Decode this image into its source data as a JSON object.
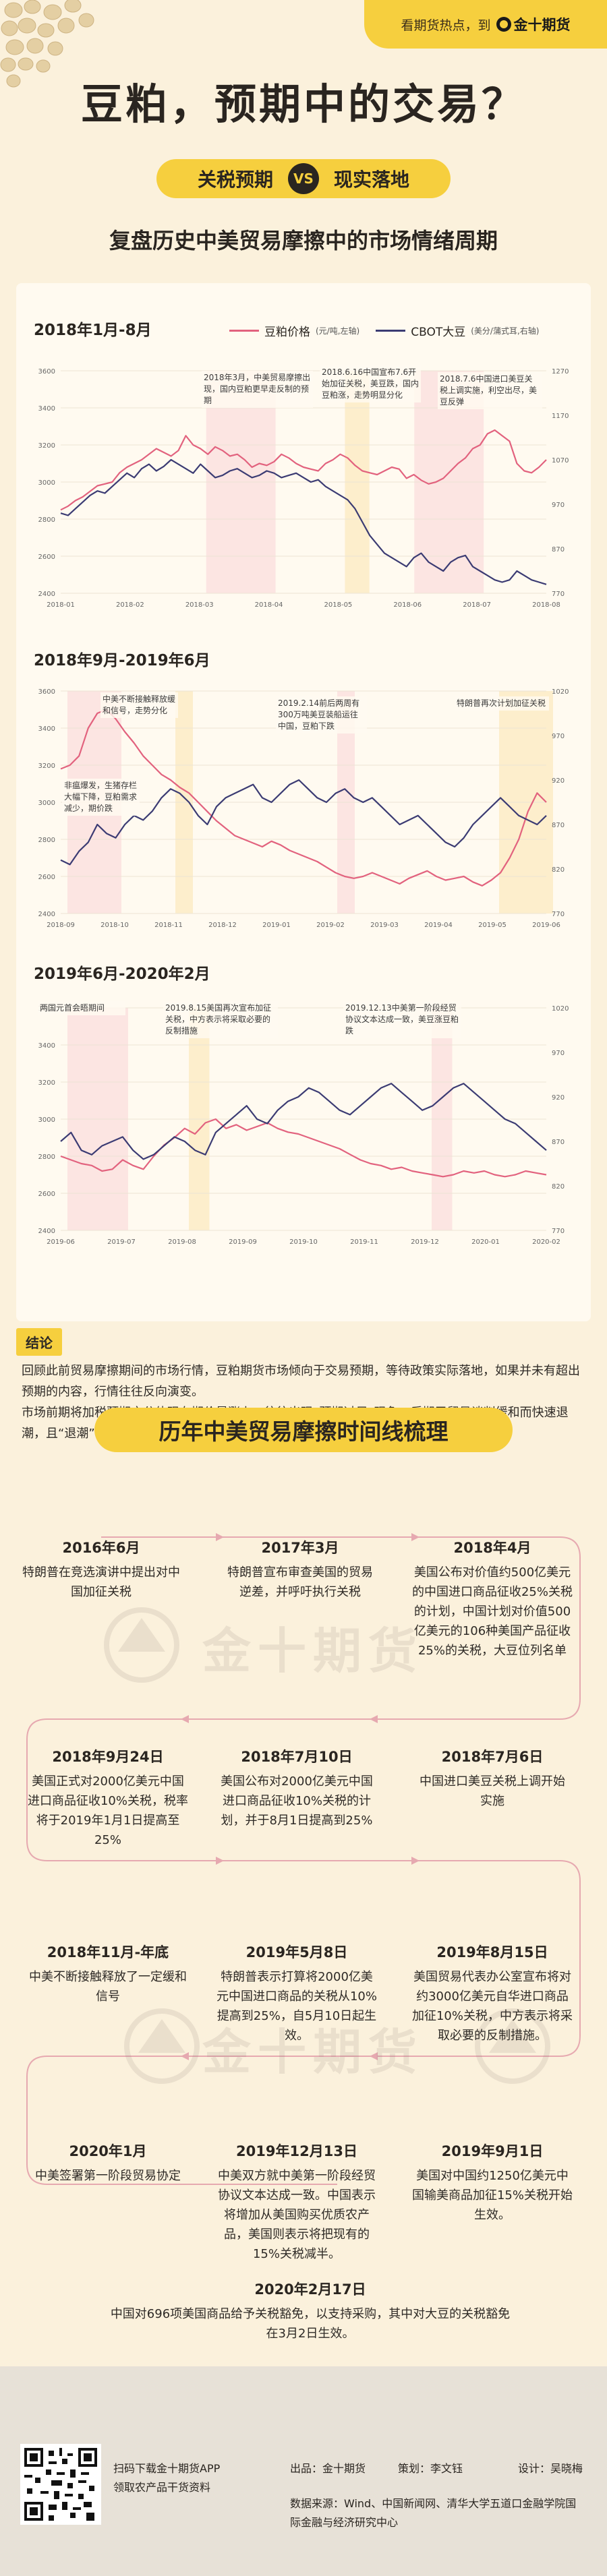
{
  "header": {
    "tagline": "看期货热点，到",
    "brand": "金十期货",
    "main_title": "豆粕，预期中的交易？",
    "pill_left": "关税预期",
    "pill_vs": "VS",
    "pill_right": "现实落地",
    "subtitle": "复盘历史中美贸易摩擦中的市场情绪周期"
  },
  "legend": {
    "series1_name": "豆粕价格",
    "series1_unit": "(元/吨,左轴)",
    "series2_name": "CBOT大豆",
    "series2_unit": "(美分/蒲式耳,右轴)"
  },
  "chart_data": [
    {
      "type": "line",
      "title": "2018年1月-8月",
      "x_ticks": [
        "2018-01",
        "2018-02",
        "2018-03",
        "2018-04",
        "2018-05",
        "2018-06",
        "2018-07",
        "2018-08"
      ],
      "y_left_ticks": [
        2400,
        2600,
        2800,
        3000,
        3200,
        3400,
        3600
      ],
      "y_right_ticks": [
        770,
        870,
        970,
        1070,
        1170,
        1270
      ],
      "ylim_left": [
        2400,
        3600
      ],
      "ylim_right": [
        770,
        1270
      ],
      "series": [
        {
          "name": "豆粕价格",
          "axis": "left",
          "color": "#e2627e",
          "values": [
            2850,
            2870,
            2900,
            2920,
            2950,
            2980,
            2990,
            3000,
            3050,
            3080,
            3100,
            3120,
            3150,
            3180,
            3160,
            3140,
            3170,
            3250,
            3200,
            3180,
            3150,
            3190,
            3170,
            3140,
            3150,
            3120,
            3080,
            3100,
            3090,
            3110,
            3150,
            3130,
            3100,
            3080,
            3070,
            3060,
            3100,
            3120,
            3150,
            3130,
            3090,
            3060,
            3050,
            3040,
            3060,
            3080,
            3070,
            3020,
            3040,
            3010,
            2990,
            3000,
            3020,
            3060,
            3100,
            3130,
            3180,
            3200,
            3260,
            3280,
            3250,
            3220,
            3100,
            3060,
            3050,
            3080,
            3120
          ]
        },
        {
          "name": "CBOT大豆",
          "axis": "right",
          "color": "#3b3b73",
          "values": [
            950,
            945,
            960,
            975,
            990,
            1000,
            995,
            1010,
            1025,
            1040,
            1030,
            1050,
            1060,
            1045,
            1055,
            1070,
            1060,
            1050,
            1040,
            1060,
            1045,
            1030,
            1035,
            1045,
            1050,
            1040,
            1030,
            1035,
            1045,
            1040,
            1030,
            1035,
            1040,
            1030,
            1020,
            1025,
            1010,
            1000,
            990,
            980,
            960,
            930,
            900,
            880,
            860,
            850,
            840,
            830,
            850,
            860,
            840,
            830,
            820,
            840,
            850,
            855,
            830,
            820,
            810,
            800,
            795,
            800,
            820,
            810,
            800,
            795,
            790
          ]
        }
      ],
      "shaded_x": [
        [
          "2018-03",
          "2018-04"
        ],
        [
          "2018-05",
          "2018-05"
        ],
        [
          "2018-06",
          "2018-07"
        ]
      ],
      "annotations": [
        "2018年3月，中美贸易摩擦出现，国内豆粕更早走反制的预期",
        "2018.6.16中国宣布7.6开始加征关税，美豆跌，国内豆粕涨，走势明显分化",
        "2018.7.6中国进口美豆关税上调实施，利空出尽，美豆反弹"
      ]
    },
    {
      "type": "line",
      "title": "2018年9月-2019年6月",
      "x_ticks": [
        "2018-09",
        "2018-10",
        "2018-11",
        "2018-12",
        "2019-01",
        "2019-02",
        "2019-03",
        "2019-04",
        "2019-05",
        "2019-06"
      ],
      "y_left_ticks": [
        2400,
        2600,
        2800,
        3000,
        3200,
        3400,
        3600
      ],
      "y_right_ticks": [
        770,
        820,
        870,
        920,
        970,
        1020
      ],
      "ylim_left": [
        2400,
        3600
      ],
      "ylim_right": [
        770,
        1020
      ],
      "series": [
        {
          "name": "豆粕价格",
          "axis": "left",
          "color": "#e2627e",
          "values": [
            3180,
            3200,
            3250,
            3400,
            3480,
            3500,
            3450,
            3380,
            3320,
            3250,
            3200,
            3150,
            3120,
            3080,
            3050,
            3000,
            2950,
            2900,
            2860,
            2820,
            2800,
            2780,
            2760,
            2790,
            2770,
            2740,
            2720,
            2700,
            2680,
            2650,
            2620,
            2600,
            2590,
            2600,
            2620,
            2600,
            2580,
            2560,
            2590,
            2610,
            2630,
            2600,
            2580,
            2590,
            2600,
            2570,
            2550,
            2580,
            2620,
            2700,
            2800,
            2950,
            3050,
            3000
          ]
        },
        {
          "name": "CBOT大豆",
          "axis": "right",
          "color": "#3b3b73",
          "values": [
            830,
            825,
            840,
            850,
            870,
            860,
            855,
            870,
            880,
            875,
            885,
            900,
            910,
            905,
            895,
            880,
            870,
            890,
            900,
            905,
            910,
            915,
            900,
            895,
            905,
            915,
            920,
            910,
            900,
            895,
            905,
            910,
            900,
            895,
            900,
            890,
            880,
            870,
            875,
            880,
            870,
            860,
            850,
            845,
            855,
            870,
            880,
            890,
            900,
            890,
            880,
            875,
            870,
            880
          ]
        }
      ],
      "shaded_x": [
        [
          "2018-09",
          "2018-10"
        ],
        [
          "2018-11",
          "2018-11"
        ],
        [
          "2019-02",
          "2019-02"
        ],
        [
          "2019-05",
          "2019-06"
        ]
      ],
      "annotations": [
        "中美不断接触释放缓和信号，走势分化",
        "非瘟爆发，生猪存栏大幅下降，豆粕需求减少，期价跌",
        "2019.2.14前后两周有300万吨美豆装船运往中国，豆粕下跌",
        "特朗普再次计划加征关税"
      ]
    },
    {
      "type": "line",
      "title": "2019年6月-2020年2月",
      "x_ticks": [
        "2019-06",
        "2019-07",
        "2019-08",
        "2019-09",
        "2019-10",
        "2019-11",
        "2019-12",
        "2020-01",
        "2020-02"
      ],
      "y_left_ticks": [
        2400,
        2600,
        2800,
        3000,
        3200,
        3400,
        3600
      ],
      "y_right_ticks": [
        770,
        820,
        870,
        920,
        970,
        1020
      ],
      "ylim_left": [
        2400,
        3600
      ],
      "ylim_right": [
        770,
        1020
      ],
      "series": [
        {
          "name": "豆粕价格",
          "axis": "left",
          "color": "#e2627e",
          "values": [
            2800,
            2780,
            2760,
            2750,
            2720,
            2730,
            2780,
            2750,
            2730,
            2800,
            2860,
            2900,
            2950,
            2920,
            2980,
            3000,
            2950,
            2970,
            2940,
            2960,
            2980,
            2950,
            2930,
            2920,
            2900,
            2880,
            2860,
            2840,
            2810,
            2780,
            2760,
            2750,
            2730,
            2740,
            2720,
            2710,
            2700,
            2690,
            2700,
            2720,
            2710,
            2720,
            2700,
            2690,
            2700,
            2720,
            2710,
            2700
          ]
        },
        {
          "name": "CBOT大豆",
          "axis": "right",
          "color": "#3b3b73",
          "values": [
            870,
            880,
            860,
            855,
            865,
            870,
            875,
            860,
            850,
            855,
            865,
            875,
            870,
            860,
            855,
            880,
            890,
            900,
            910,
            895,
            890,
            905,
            915,
            920,
            930,
            925,
            915,
            905,
            900,
            910,
            920,
            930,
            935,
            925,
            915,
            905,
            910,
            920,
            930,
            935,
            925,
            915,
            905,
            895,
            890,
            880,
            870,
            860
          ]
        }
      ],
      "shaded_x": [
        [
          "2019-06",
          "2019-07"
        ],
        [
          "2019-08",
          "2019-08"
        ],
        [
          "2019-12",
          "2019-12"
        ]
      ],
      "annotations": [
        "两国元首会晤期间",
        "2019.8.15美国再次宣布加征关税，中方表示将采取必要的反制措施",
        "2019.12.13中美第一阶段经贸协议文本达成一致，美豆涨豆粕跌"
      ]
    }
  ],
  "conclusion": {
    "badge": "结论",
    "p1": "回顾此前贸易摩擦期间的市场行情，豆粕期货市场倾向于交易预期，等待政策实际落地，如果并未有超出预期的内容，行情往往反向演变。",
    "p2": "市场前期将加税预期充分体现在期价暴涨上，往往出现“预期过足”现象，后期于贸易谈判缓和而快速退潮，且“退潮”将比炒作来得更猛烈。"
  },
  "timeline": {
    "title": "历年中美贸易摩擦时间线梳理",
    "watermark": "金十期货",
    "events": [
      {
        "date": "2016年6月",
        "desc": "特朗普在竞选演讲中提出对中国加征关税"
      },
      {
        "date": "2017年3月",
        "desc": "特朗普宣布审查美国的贸易逆差，并呼吁执行关税"
      },
      {
        "date": "2018年4月",
        "desc": "美国公布对价值约500亿美元的中国进口商品征收25%关税的计划，中国计划对价值500亿美元的106种美国产品征收25%的关税，大豆位列名单"
      },
      {
        "date": "2018年9月24日",
        "desc": "美国正式对2000亿美元中国进口商品征收10%关税，税率将于2019年1月1日提高至25%"
      },
      {
        "date": "2018年7月10日",
        "desc": "美国公布对2000亿美元中国进口商品征收10%关税的计划，并于8月1日提高到25%"
      },
      {
        "date": "2018年7月6日",
        "desc": "中国进口美豆关税上调开始实施"
      },
      {
        "date": "2018年11月-年底",
        "desc": "中美不断接触释放了一定缓和信号"
      },
      {
        "date": "2019年5月8日",
        "desc": "特朗普表示打算将2000亿美元中国进口商品的关税从10%提高到25%，自5月10日起生效。"
      },
      {
        "date": "2019年8月15日",
        "desc": "美国贸易代表办公室宣布将对约3000亿美元自华进口商品加征10%关税，中方表示将采取必要的反制措施。"
      },
      {
        "date": "2020年1月",
        "desc": "中美签署第一阶段贸易协定"
      },
      {
        "date": "2019年12月13日",
        "desc": "中美双方就中美第一阶段经贸协议文本达成一致。中国表示将增加从美国购买优质农产品，美国则表示将把现有的15%关税减半。"
      },
      {
        "date": "2019年9月1日",
        "desc": "美国对中国约1250亿美元中国输美商品加征15%关税开始生效。"
      },
      {
        "date": "2020年2月17日",
        "desc": "中国对696项美国商品给予关税豁免，以支持采购，其中对大豆的关税豁免在3月2日生效。"
      }
    ]
  },
  "footer": {
    "app_line1": "扫码下载金十期货APP",
    "app_line2": "领取农产品干货资料",
    "source_label": "出品：金十期货",
    "planner_label": "策划：李文钰",
    "designer_label": "设计：吴晓梅",
    "data_source": "数据来源：Wind、中国新闻网、清华大学五道口金融学院国际金融与经济研究中心"
  }
}
